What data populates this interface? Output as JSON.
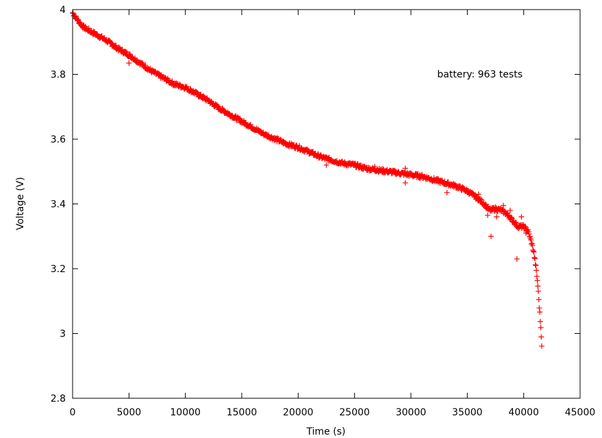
{
  "chart_data": {
    "type": "scatter",
    "xlabel": "Time (s)",
    "ylabel": "Voltage (V)",
    "xlim": [
      0,
      45000
    ],
    "ylim": [
      2.8,
      4.0
    ],
    "xticks": [
      0,
      5000,
      10000,
      15000,
      20000,
      25000,
      30000,
      35000,
      40000,
      45000
    ],
    "yticks": [
      2.8,
      3.0,
      3.2,
      3.4,
      3.6,
      3.8,
      4.0
    ],
    "xtick_labels": [
      "0",
      "5000",
      "10000",
      "15000",
      "20000",
      "25000",
      "30000",
      "35000",
      "40000",
      "45000"
    ],
    "ytick_labels": [
      "2.8",
      "3",
      "3.2",
      "3.4",
      "3.6",
      "3.8",
      "4"
    ],
    "grid": false,
    "legend_position": "top-right",
    "marker": "plus",
    "colors": {
      "series": "#ff0000",
      "axes": "#000000",
      "background": "#ffffff"
    },
    "series": [
      {
        "name": "battery: 963 tests",
        "n_points": 963,
        "curve": [
          [
            0,
            3.99
          ],
          [
            500,
            3.965
          ],
          [
            1000,
            3.945
          ],
          [
            2000,
            3.925
          ],
          [
            3000,
            3.905
          ],
          [
            4000,
            3.88
          ],
          [
            5000,
            3.86
          ],
          [
            6000,
            3.835
          ],
          [
            7000,
            3.81
          ],
          [
            8000,
            3.79
          ],
          [
            9000,
            3.77
          ],
          [
            10000,
            3.76
          ],
          [
            11000,
            3.74
          ],
          [
            12000,
            3.72
          ],
          [
            13000,
            3.695
          ],
          [
            14000,
            3.675
          ],
          [
            15000,
            3.655
          ],
          [
            16000,
            3.635
          ],
          [
            17000,
            3.615
          ],
          [
            18000,
            3.6
          ],
          [
            19000,
            3.585
          ],
          [
            20000,
            3.575
          ],
          [
            21000,
            3.56
          ],
          [
            22000,
            3.545
          ],
          [
            23000,
            3.535
          ],
          [
            24000,
            3.525
          ],
          [
            25000,
            3.52
          ],
          [
            26000,
            3.51
          ],
          [
            27000,
            3.505
          ],
          [
            28000,
            3.5
          ],
          [
            29000,
            3.495
          ],
          [
            30000,
            3.49
          ],
          [
            31000,
            3.485
          ],
          [
            32000,
            3.475
          ],
          [
            33000,
            3.465
          ],
          [
            34000,
            3.455
          ],
          [
            35000,
            3.44
          ],
          [
            36000,
            3.415
          ],
          [
            36500,
            3.4
          ],
          [
            37000,
            3.38
          ],
          [
            37500,
            3.385
          ],
          [
            38000,
            3.38
          ],
          [
            38500,
            3.37
          ],
          [
            39000,
            3.35
          ],
          [
            39500,
            3.33
          ],
          [
            40000,
            3.33
          ],
          [
            40400,
            3.315
          ],
          [
            40700,
            3.28
          ],
          [
            40900,
            3.25
          ],
          [
            41100,
            3.2
          ],
          [
            41250,
            3.15
          ],
          [
            41350,
            3.1
          ],
          [
            41450,
            3.05
          ],
          [
            41550,
            3.0
          ],
          [
            41600,
            2.965
          ]
        ],
        "outliers": [
          [
            5000,
            3.835
          ],
          [
            22500,
            3.52
          ],
          [
            29500,
            3.51
          ],
          [
            29500,
            3.465
          ],
          [
            33200,
            3.435
          ],
          [
            37100,
            3.3
          ],
          [
            37600,
            3.36
          ],
          [
            38200,
            3.395
          ],
          [
            38800,
            3.38
          ],
          [
            39400,
            3.23
          ],
          [
            39800,
            3.36
          ],
          [
            40200,
            3.31
          ],
          [
            36000,
            3.43
          ],
          [
            36800,
            3.365
          ],
          [
            26800,
            3.515
          ]
        ]
      }
    ]
  }
}
